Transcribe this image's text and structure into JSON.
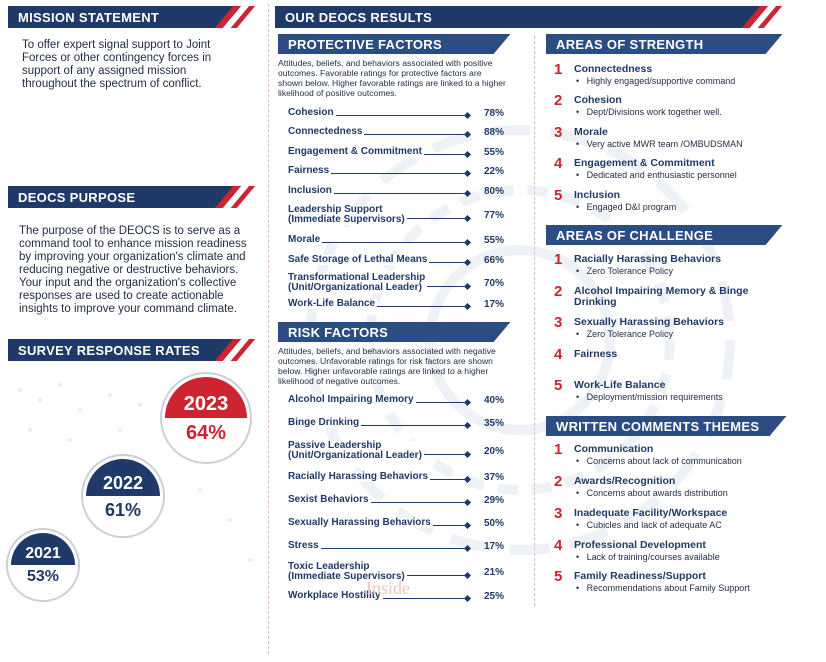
{
  "mission": {
    "title": "MISSION STATEMENT",
    "text": "To offer expert signal support to Joint Forces or other contingency forces in support of any assigned mission throughout the spectrum of conflict."
  },
  "purpose": {
    "title": "DEOCS PURPOSE",
    "text": "The purpose of the DEOCS is to serve as a command tool to enhance mission readiness by improving your organization's climate and reducing negative or destructive behaviors. Your input and the organization's collective responses are used to create actionable insights to improve your command climate."
  },
  "response": {
    "title": "SURVEY RESPONSE RATES",
    "years": [
      {
        "year": "2023",
        "rate": "64%",
        "color": "#cc2430"
      },
      {
        "year": "2022",
        "rate": "61%",
        "color": "#1f3a68"
      },
      {
        "year": "2021",
        "rate": "53%",
        "color": "#1f3a68"
      }
    ]
  },
  "results": {
    "title": "OUR DEOCS RESULTS"
  },
  "protective": {
    "title": "PROTECTIVE FACTORS",
    "note": "Attitudes, beliefs, and behaviors associated with positive outcomes. Favorable ratings for protective factors are shown below. Higher favorable ratings are linked to a higher likelihood of positive outcomes.",
    "items": [
      {
        "label": "Cohesion",
        "value": "78%"
      },
      {
        "label": "Connectedness",
        "value": "88%"
      },
      {
        "label": "Engagement & Commitment",
        "value": "55%"
      },
      {
        "label": "Fairness",
        "value": "22%"
      },
      {
        "label": "Inclusion",
        "value": "80%"
      },
      {
        "label": "Leadership Support",
        "label2": "(Immediate Supervisors)",
        "value": "77%"
      },
      {
        "label": "Morale",
        "value": "55%"
      },
      {
        "label": "Safe Storage of Lethal Means",
        "value": "66%"
      },
      {
        "label": "Transformational Leadership",
        "label2": "(Unit/Organizational Leader)",
        "value": "70%"
      },
      {
        "label": "Work-Life Balance",
        "value": "17%"
      }
    ]
  },
  "risk": {
    "title": "RISK FACTORS",
    "note": "Attitudes, beliefs, and behaviors associated with negative outcomes. Unfavorable ratings for risk factors are shown below. Higher unfavorable ratings are linked to a higher likelihood of negative outcomes.",
    "items": [
      {
        "label": "Alcohol Impairing Memory",
        "value": "40%"
      },
      {
        "label": "Binge Drinking",
        "value": "35%"
      },
      {
        "label": "Passive Leadership",
        "label2": "(Unit/Organizational Leader)",
        "value": "20%"
      },
      {
        "label": "Racially Harassing Behaviors",
        "value": "37%"
      },
      {
        "label": "Sexist Behaviors",
        "value": "29%"
      },
      {
        "label": "Sexually Harassing Behaviors",
        "value": "50%"
      },
      {
        "label": "Stress",
        "value": "17%"
      },
      {
        "label": "Toxic Leadership",
        "label2": "(Immediate Supervisors)",
        "value": "21%"
      },
      {
        "label": "Workplace Hostility",
        "value": "25%"
      }
    ]
  },
  "strength": {
    "title": "AREAS OF STRENGTH",
    "items": [
      {
        "n": "1",
        "t": "Connectedness",
        "d": "Highly engaged/supportive command"
      },
      {
        "n": "2",
        "t": "Cohesion",
        "d": "Dept/Divisions work together well."
      },
      {
        "n": "3",
        "t": "Morale",
        "d": "Very active MWR team /OMBUDSMAN"
      },
      {
        "n": "4",
        "t": "Engagement & Commitment",
        "d": "Dedicated and enthusiastic personnel"
      },
      {
        "n": "5",
        "t": "Inclusion",
        "d": "Engaged D&I program"
      }
    ]
  },
  "challenge": {
    "title": "AREAS OF CHALLENGE",
    "items": [
      {
        "n": "1",
        "t": "Racially Harassing Behaviors",
        "d": "Zero Tolerance Policy"
      },
      {
        "n": "2",
        "t": "Alcohol Impairing Memory & Binge",
        "t2": "Drinking",
        "d": ""
      },
      {
        "n": "3",
        "t": "Sexually Harassing Behaviors",
        "d": "Zero Tolerance Policy"
      },
      {
        "n": "4",
        "t": "Fairness",
        "d": ""
      },
      {
        "n": "5",
        "t": "Work-Life Balance",
        "d": "Deployment/mission requirements"
      }
    ]
  },
  "comments": {
    "title": "WRITTEN COMMENTS THEMES",
    "items": [
      {
        "n": "1",
        "t": "Communication",
        "d": "Concerns about lack of communication"
      },
      {
        "n": "2",
        "t": "Awards/Recognition",
        "d": "Concerns about awards distribution"
      },
      {
        "n": "3",
        "t": "Inadequate Facility/Workspace",
        "d": "Cubicles and lack of adequate AC"
      },
      {
        "n": "4",
        "t": "Professional Development",
        "d": "Lack of training/courses available"
      },
      {
        "n": "5",
        "t": "Family Readiness/Support",
        "d": "Recommendations about Family Support"
      }
    ]
  },
  "watermark": "Inside"
}
